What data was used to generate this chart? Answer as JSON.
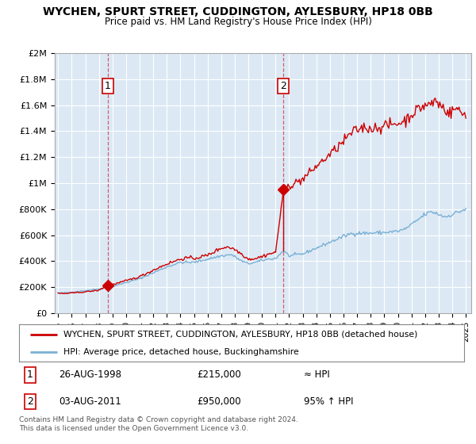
{
  "title": "WYCHEN, SPURT STREET, CUDDINGTON, AYLESBURY, HP18 0BB",
  "subtitle": "Price paid vs. HM Land Registry's House Price Index (HPI)",
  "ylim": [
    0,
    2000000
  ],
  "yticks": [
    0,
    200000,
    400000,
    600000,
    800000,
    1000000,
    1200000,
    1400000,
    1600000,
    1800000,
    2000000
  ],
  "ytick_labels": [
    "£0",
    "£200K",
    "£400K",
    "£600K",
    "£800K",
    "£1M",
    "£1.2M",
    "£1.4M",
    "£1.6M",
    "£1.8M",
    "£2M"
  ],
  "xlim_start": 1994.75,
  "xlim_end": 2025.4,
  "sale1_x": 1998.65,
  "sale1_y": 215000,
  "sale2_x": 2011.58,
  "sale2_y": 950000,
  "sale2_hpi_y": 480000,
  "red_line_color": "#cc0000",
  "blue_line_color": "#7ab0d4",
  "vline_color": "#cc0000",
  "vline_alpha": 0.6,
  "chart_bg_color": "#dce9f5",
  "background_color": "#ffffff",
  "grid_color": "#ffffff",
  "legend_label_red": "WYCHEN, SPURT STREET, CUDDINGTON, AYLESBURY, HP18 0BB (detached house)",
  "legend_label_blue": "HPI: Average price, detached house, Buckinghamshire",
  "footer": "Contains HM Land Registry data © Crown copyright and database right 2024.\nThis data is licensed under the Open Government Licence v3.0."
}
